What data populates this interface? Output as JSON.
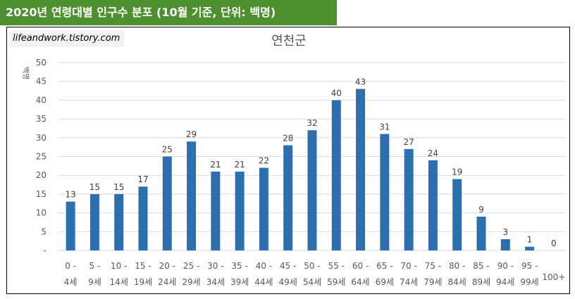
{
  "header": {
    "title": "2020년 연령대별 인구수 분포 (10월 기준, 단위: 백명)"
  },
  "watermark": {
    "text": "lifeandwork.tistory.com"
  },
  "colors": {
    "header_bg": "#4e8f2f",
    "bar": "#2e6fb0",
    "grid": "#d9d9d9"
  },
  "chart_data": {
    "type": "bar",
    "title": "연천군",
    "ylabel": "백명",
    "xlabel": "",
    "ylim": [
      0,
      50
    ],
    "yticks": [
      {
        "value": 0,
        "label": "-"
      },
      {
        "value": 5,
        "label": "5"
      },
      {
        "value": 10,
        "label": "10"
      },
      {
        "value": 15,
        "label": "15"
      },
      {
        "value": 20,
        "label": "20"
      },
      {
        "value": 25,
        "label": "25"
      },
      {
        "value": 30,
        "label": "30"
      },
      {
        "value": 35,
        "label": "35"
      },
      {
        "value": 40,
        "label": "40"
      },
      {
        "value": 45,
        "label": "45"
      },
      {
        "value": 50,
        "label": "50"
      }
    ],
    "grid": true,
    "legend": "none",
    "categories": [
      {
        "line1": "0 -",
        "line2": "4세"
      },
      {
        "line1": "5 -",
        "line2": "9세"
      },
      {
        "line1": "10 -",
        "line2": "14세"
      },
      {
        "line1": "15 -",
        "line2": "19세"
      },
      {
        "line1": "20 -",
        "line2": "24세"
      },
      {
        "line1": "25 -",
        "line2": "29세"
      },
      {
        "line1": "30 -",
        "line2": "34세"
      },
      {
        "line1": "35 -",
        "line2": "39세"
      },
      {
        "line1": "40 -",
        "line2": "44세"
      },
      {
        "line1": "45 -",
        "line2": "49세"
      },
      {
        "line1": "50 -",
        "line2": "54세"
      },
      {
        "line1": "55 -",
        "line2": "59세"
      },
      {
        "line1": "60 -",
        "line2": "64세"
      },
      {
        "line1": "65 -",
        "line2": "69세"
      },
      {
        "line1": "70 -",
        "line2": "74세"
      },
      {
        "line1": "75 -",
        "line2": "79세"
      },
      {
        "line1": "80 -",
        "line2": "84세"
      },
      {
        "line1": "85 -",
        "line2": "89세"
      },
      {
        "line1": "90 -",
        "line2": "94세"
      },
      {
        "line1": "95 -",
        "line2": "99세"
      },
      {
        "line1": "",
        "line2": "100+"
      }
    ],
    "values": [
      13,
      15,
      15,
      17,
      25,
      29,
      21,
      21,
      22,
      28,
      32,
      40,
      43,
      31,
      27,
      24,
      19,
      9,
      3,
      1,
      0
    ],
    "data_labels": [
      "13",
      "15",
      "15",
      "17",
      "25",
      "29",
      "21",
      "21",
      "22",
      "28",
      "32",
      "40",
      "43",
      "31",
      "27",
      "24",
      "19",
      "9",
      "3",
      "1",
      "0"
    ]
  }
}
